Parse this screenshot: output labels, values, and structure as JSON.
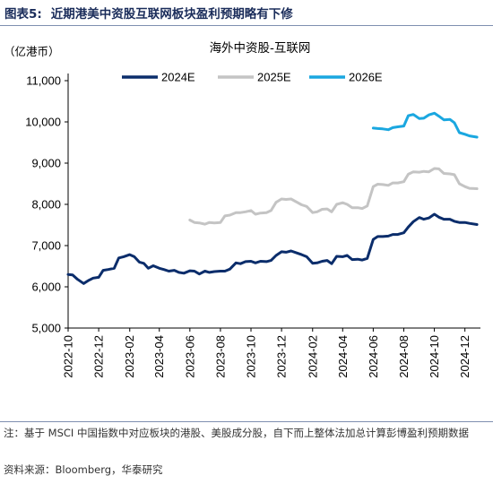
{
  "header": {
    "figure_label": "图表5:",
    "figure_title": "近期港美中资股互联网板块盈利预期略有下修"
  },
  "footer": {
    "note": "注：基于 MSCI 中国指数中对应板块的港股、美股成分股，自下而上整体法加总计算彭博盈利预期数据",
    "source": "资料来源：Bloomberg，华泰研究"
  },
  "colors": {
    "2024E": "#0b2d6b",
    "2025E": "#c4c4c4",
    "2026E": "#1aa7e0"
  },
  "chart_data": {
    "type": "line",
    "title": "海外中资股-互联网",
    "unit_label": "（亿港币）",
    "ylim": [
      5000,
      11000
    ],
    "y_ticks": [
      5000,
      6000,
      7000,
      8000,
      9000,
      10000,
      11000
    ],
    "y_tick_labels": [
      "5,000",
      "6,000",
      "7,000",
      "8,000",
      "9,000",
      "10,000",
      "11,000"
    ],
    "x_range": [
      "2022-10",
      "2024-12"
    ],
    "x_tick_labels": [
      "2022-10",
      "2022-12",
      "2023-02",
      "2023-04",
      "2023-06",
      "2023-08",
      "2023-10",
      "2023-12",
      "2024-02",
      "2024-04",
      "2024-06",
      "2024-08",
      "2024-10",
      "2024-12"
    ],
    "legend_position": "top",
    "grid": false,
    "series": [
      {
        "name": "2024E",
        "values": [
          [
            "2022-10-01",
            6300
          ],
          [
            "2022-10-10",
            6290
          ],
          [
            "2022-10-20",
            6180
          ],
          [
            "2022-11-01",
            6080
          ],
          [
            "2022-11-10",
            6150
          ],
          [
            "2022-11-20",
            6210
          ],
          [
            "2022-12-01",
            6230
          ],
          [
            "2022-12-10",
            6400
          ],
          [
            "2022-12-20",
            6420
          ],
          [
            "2023-01-01",
            6450
          ],
          [
            "2023-01-10",
            6700
          ],
          [
            "2023-01-20",
            6730
          ],
          [
            "2023-02-01",
            6780
          ],
          [
            "2023-02-10",
            6730
          ],
          [
            "2023-02-20",
            6600
          ],
          [
            "2023-03-01",
            6570
          ],
          [
            "2023-03-10",
            6450
          ],
          [
            "2023-03-20",
            6510
          ],
          [
            "2023-04-01",
            6450
          ],
          [
            "2023-04-10",
            6420
          ],
          [
            "2023-04-20",
            6380
          ],
          [
            "2023-05-01",
            6400
          ],
          [
            "2023-05-10",
            6350
          ],
          [
            "2023-05-20",
            6330
          ],
          [
            "2023-06-01",
            6390
          ],
          [
            "2023-06-10",
            6380
          ],
          [
            "2023-06-20",
            6310
          ],
          [
            "2023-07-01",
            6380
          ],
          [
            "2023-07-10",
            6350
          ],
          [
            "2023-07-20",
            6370
          ],
          [
            "2023-08-01",
            6380
          ],
          [
            "2023-08-10",
            6380
          ],
          [
            "2023-08-20",
            6430
          ],
          [
            "2023-09-01",
            6580
          ],
          [
            "2023-09-10",
            6560
          ],
          [
            "2023-09-20",
            6610
          ],
          [
            "2023-10-01",
            6620
          ],
          [
            "2023-10-10",
            6580
          ],
          [
            "2023-10-20",
            6620
          ],
          [
            "2023-11-01",
            6610
          ],
          [
            "2023-11-10",
            6640
          ],
          [
            "2023-11-20",
            6760
          ],
          [
            "2023-12-01",
            6850
          ],
          [
            "2023-12-10",
            6840
          ],
          [
            "2023-12-20",
            6870
          ],
          [
            "2024-01-01",
            6820
          ],
          [
            "2024-01-10",
            6780
          ],
          [
            "2024-01-20",
            6730
          ],
          [
            "2024-02-01",
            6570
          ],
          [
            "2024-02-10",
            6580
          ],
          [
            "2024-02-20",
            6620
          ],
          [
            "2024-03-01",
            6640
          ],
          [
            "2024-03-10",
            6560
          ],
          [
            "2024-03-20",
            6740
          ],
          [
            "2024-04-01",
            6730
          ],
          [
            "2024-04-10",
            6760
          ],
          [
            "2024-04-20",
            6660
          ],
          [
            "2024-05-01",
            6670
          ],
          [
            "2024-05-10",
            6650
          ],
          [
            "2024-05-20",
            6690
          ],
          [
            "2024-06-01",
            7150
          ],
          [
            "2024-06-10",
            7220
          ],
          [
            "2024-06-20",
            7220
          ],
          [
            "2024-07-01",
            7230
          ],
          [
            "2024-07-10",
            7270
          ],
          [
            "2024-07-20",
            7270
          ],
          [
            "2024-08-01",
            7310
          ],
          [
            "2024-08-10",
            7450
          ],
          [
            "2024-08-20",
            7580
          ],
          [
            "2024-09-01",
            7680
          ],
          [
            "2024-09-10",
            7640
          ],
          [
            "2024-09-20",
            7670
          ],
          [
            "2024-10-01",
            7760
          ],
          [
            "2024-10-10",
            7690
          ],
          [
            "2024-10-20",
            7640
          ],
          [
            "2024-11-01",
            7640
          ],
          [
            "2024-11-10",
            7590
          ],
          [
            "2024-11-20",
            7560
          ],
          [
            "2024-12-01",
            7560
          ],
          [
            "2024-12-10",
            7540
          ],
          [
            "2024-12-25",
            7510
          ]
        ]
      },
      {
        "name": "2025E",
        "values": [
          [
            "2023-06-01",
            7620
          ],
          [
            "2023-06-10",
            7560
          ],
          [
            "2023-06-20",
            7550
          ],
          [
            "2023-07-01",
            7520
          ],
          [
            "2023-07-10",
            7560
          ],
          [
            "2023-07-20",
            7550
          ],
          [
            "2023-08-01",
            7560
          ],
          [
            "2023-08-10",
            7720
          ],
          [
            "2023-08-20",
            7740
          ],
          [
            "2023-09-01",
            7800
          ],
          [
            "2023-09-10",
            7800
          ],
          [
            "2023-09-20",
            7820
          ],
          [
            "2023-10-01",
            7850
          ],
          [
            "2023-10-10",
            7760
          ],
          [
            "2023-10-20",
            7790
          ],
          [
            "2023-11-01",
            7800
          ],
          [
            "2023-11-10",
            7850
          ],
          [
            "2023-11-20",
            8050
          ],
          [
            "2023-12-01",
            8130
          ],
          [
            "2023-12-10",
            8120
          ],
          [
            "2023-12-20",
            8130
          ],
          [
            "2024-01-01",
            8050
          ],
          [
            "2024-01-10",
            7990
          ],
          [
            "2024-01-20",
            7950
          ],
          [
            "2024-02-01",
            7800
          ],
          [
            "2024-02-10",
            7820
          ],
          [
            "2024-02-20",
            7880
          ],
          [
            "2024-03-01",
            7890
          ],
          [
            "2024-03-10",
            7820
          ],
          [
            "2024-03-20",
            8000
          ],
          [
            "2024-04-01",
            8040
          ],
          [
            "2024-04-10",
            8000
          ],
          [
            "2024-04-20",
            7920
          ],
          [
            "2024-05-01",
            7920
          ],
          [
            "2024-05-10",
            7900
          ],
          [
            "2024-05-20",
            7960
          ],
          [
            "2024-06-01",
            8430
          ],
          [
            "2024-06-10",
            8490
          ],
          [
            "2024-06-20",
            8480
          ],
          [
            "2024-07-01",
            8460
          ],
          [
            "2024-07-10",
            8520
          ],
          [
            "2024-07-20",
            8520
          ],
          [
            "2024-08-01",
            8550
          ],
          [
            "2024-08-10",
            8730
          ],
          [
            "2024-08-20",
            8790
          ],
          [
            "2024-09-01",
            8780
          ],
          [
            "2024-09-10",
            8800
          ],
          [
            "2024-09-20",
            8790
          ],
          [
            "2024-10-01",
            8870
          ],
          [
            "2024-10-10",
            8860
          ],
          [
            "2024-10-20",
            8750
          ],
          [
            "2024-11-01",
            8740
          ],
          [
            "2024-11-10",
            8720
          ],
          [
            "2024-11-20",
            8500
          ],
          [
            "2024-12-01",
            8430
          ],
          [
            "2024-12-10",
            8390
          ],
          [
            "2024-12-25",
            8380
          ]
        ]
      },
      {
        "name": "2026E",
        "values": [
          [
            "2024-06-01",
            9850
          ],
          [
            "2024-06-10",
            9840
          ],
          [
            "2024-06-20",
            9830
          ],
          [
            "2024-07-01",
            9810
          ],
          [
            "2024-07-10",
            9860
          ],
          [
            "2024-07-20",
            9880
          ],
          [
            "2024-08-01",
            9900
          ],
          [
            "2024-08-10",
            10150
          ],
          [
            "2024-08-20",
            10180
          ],
          [
            "2024-09-01",
            10080
          ],
          [
            "2024-09-10",
            10090
          ],
          [
            "2024-09-20",
            10170
          ],
          [
            "2024-10-01",
            10210
          ],
          [
            "2024-10-10",
            10140
          ],
          [
            "2024-10-20",
            10050
          ],
          [
            "2024-11-01",
            10060
          ],
          [
            "2024-11-10",
            9980
          ],
          [
            "2024-11-20",
            9740
          ],
          [
            "2024-12-01",
            9700
          ],
          [
            "2024-12-10",
            9660
          ],
          [
            "2024-12-25",
            9630
          ]
        ]
      }
    ]
  }
}
